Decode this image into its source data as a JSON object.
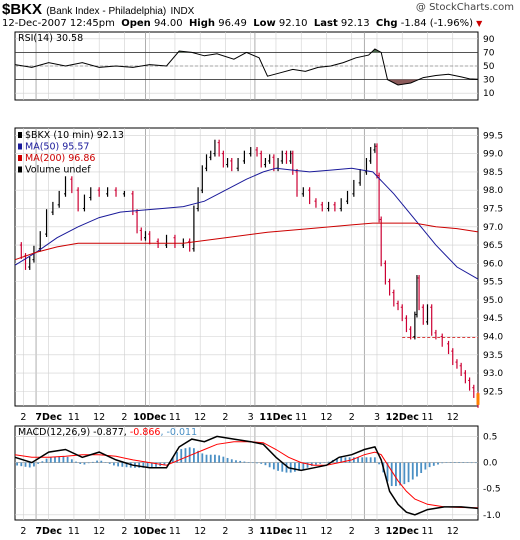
{
  "header": {
    "symbol": "$BKX",
    "name": "(Bank Index - Philadelphia)",
    "exchange": "INDX",
    "copyright": "@ StockCharts.com",
    "date": "12-Dec-2007 12:45pm",
    "open_label": "Open",
    "open": "94.00",
    "high_label": "High",
    "high": "96.49",
    "low_label": "Low",
    "low": "92.10",
    "last_label": "Last",
    "last": "92.13",
    "chg_label": "Chg",
    "chg": "-1.84 (-1.96%)",
    "chg_marker": "▼"
  },
  "colors": {
    "rsi_line": "#000000",
    "rsi_fill_overbought": "#4d6b4d",
    "rsi_fill_oversold": "#8b5a5a",
    "ma50": "#1a1a9a",
    "ma200": "#cc0000",
    "price_up": "#000000",
    "price_down": "#cc0033",
    "macd_line": "#000000",
    "macd_signal": "#ff0000",
    "macd_hist": "#4a8fc4",
    "grid": "#d0d0d0"
  },
  "chart_data": {
    "type": "line",
    "x_tick_labels": [
      "2",
      "7Dec",
      "11",
      "12",
      "2",
      "10Dec",
      "11",
      "12",
      "2",
      "3",
      "11Dec",
      "11",
      "12",
      "2",
      "3",
      "12Dec",
      "11",
      "12"
    ],
    "x_tick_index": [
      4,
      16,
      28,
      40,
      52,
      64,
      76,
      88,
      100,
      112,
      124,
      136,
      148,
      160,
      172,
      184,
      196,
      208
    ],
    "day_boundary_index": [
      10,
      62,
      114,
      166
    ],
    "rsi": {
      "legend": "RSI(14) 30.58",
      "label": "RSI(14)",
      "last": "30.58",
      "ylim": [
        0,
        100
      ],
      "y_ticks": [
        10,
        30,
        50,
        70,
        90
      ],
      "ref_lines": [
        30,
        50,
        70
      ],
      "points": [
        [
          0,
          52
        ],
        [
          8,
          48
        ],
        [
          16,
          55
        ],
        [
          24,
          50
        ],
        [
          32,
          55
        ],
        [
          40,
          48
        ],
        [
          48,
          50
        ],
        [
          56,
          48
        ],
        [
          64,
          52
        ],
        [
          72,
          50
        ],
        [
          78,
          72
        ],
        [
          84,
          70
        ],
        [
          90,
          65
        ],
        [
          96,
          68
        ],
        [
          104,
          60
        ],
        [
          110,
          70
        ],
        [
          116,
          62
        ],
        [
          120,
          35
        ],
        [
          126,
          40
        ],
        [
          132,
          45
        ],
        [
          138,
          42
        ],
        [
          144,
          48
        ],
        [
          150,
          50
        ],
        [
          156,
          55
        ],
        [
          162,
          62
        ],
        [
          168,
          66
        ],
        [
          171,
          75
        ],
        [
          174,
          70
        ],
        [
          177,
          30
        ],
        [
          182,
          22
        ],
        [
          188,
          25
        ],
        [
          194,
          33
        ],
        [
          200,
          36
        ],
        [
          206,
          38
        ],
        [
          212,
          34
        ],
        [
          216,
          31
        ],
        [
          220,
          30.58
        ]
      ]
    },
    "price": {
      "legend_symbol": "$BKX (10 min) 92.13",
      "legend_ma50": "MA(50) 95.57",
      "legend_ma200": "MA(200) 96.86",
      "legend_volume": "Volume undef",
      "ylim": [
        92.1,
        99.7
      ],
      "y_ticks": [
        92.5,
        93.0,
        93.5,
        94.0,
        94.5,
        95.0,
        95.5,
        96.0,
        96.5,
        97.0,
        97.5,
        98.0,
        98.5,
        99.0,
        99.5
      ],
      "prev_close_level": 93.97,
      "close_points": [
        [
          0,
          96.5
        ],
        [
          3,
          96.2
        ],
        [
          5,
          95.9
        ],
        [
          7,
          96.1
        ],
        [
          9,
          96.4
        ],
        [
          12,
          96.8
        ],
        [
          15,
          97.4
        ],
        [
          18,
          97.6
        ],
        [
          21,
          97.9
        ],
        [
          24,
          98.3
        ],
        [
          27,
          98.0
        ],
        [
          30,
          97.5
        ],
        [
          33,
          97.8
        ],
        [
          36,
          98.0
        ],
        [
          40,
          97.9
        ],
        [
          44,
          98.0
        ],
        [
          48,
          97.9
        ],
        [
          52,
          97.9
        ],
        [
          56,
          97.4
        ],
        [
          58,
          96.9
        ],
        [
          60,
          96.7
        ],
        [
          62,
          96.8
        ],
        [
          64,
          96.6
        ],
        [
          68,
          96.5
        ],
        [
          72,
          96.7
        ],
        [
          76,
          96.5
        ],
        [
          80,
          96.6
        ],
        [
          83,
          96.4
        ],
        [
          85,
          97.5
        ],
        [
          87,
          98.0
        ],
        [
          89,
          98.6
        ],
        [
          91,
          98.9
        ],
        [
          93,
          99.0
        ],
        [
          95,
          99.3
        ],
        [
          97,
          99.0
        ],
        [
          99,
          98.7
        ],
        [
          101,
          98.8
        ],
        [
          103,
          98.6
        ],
        [
          106,
          98.8
        ],
        [
          109,
          99.0
        ],
        [
          112,
          99.1
        ],
        [
          115,
          99.0
        ],
        [
          117,
          98.7
        ],
        [
          119,
          98.8
        ],
        [
          121,
          98.9
        ],
        [
          123,
          98.6
        ],
        [
          125,
          98.8
        ],
        [
          127,
          99.0
        ],
        [
          129,
          98.8
        ],
        [
          131,
          99.0
        ],
        [
          132,
          98.5
        ],
        [
          134,
          97.9
        ],
        [
          137,
          98.0
        ],
        [
          140,
          97.7
        ],
        [
          143,
          97.6
        ],
        [
          146,
          97.5
        ],
        [
          149,
          97.6
        ],
        [
          152,
          97.5
        ],
        [
          155,
          97.7
        ],
        [
          158,
          97.9
        ],
        [
          161,
          98.2
        ],
        [
          164,
          98.5
        ],
        [
          167,
          98.8
        ],
        [
          169,
          99.1
        ],
        [
          171,
          99.2
        ],
        [
          172,
          98.4
        ],
        [
          173,
          97.2
        ],
        [
          174,
          96.0
        ],
        [
          176,
          95.5
        ],
        [
          178,
          95.2
        ],
        [
          180,
          94.9
        ],
        [
          182,
          94.8
        ],
        [
          184,
          94.5
        ],
        [
          186,
          94.2
        ],
        [
          188,
          94.0
        ],
        [
          190,
          94.6
        ],
        [
          191,
          95.6
        ],
        [
          192,
          94.8
        ],
        [
          194,
          94.4
        ],
        [
          196,
          94.8
        ],
        [
          198,
          94.1
        ],
        [
          200,
          94.0
        ],
        [
          203,
          93.8
        ],
        [
          206,
          93.6
        ],
        [
          208,
          93.3
        ],
        [
          210,
          93.2
        ],
        [
          212,
          93.0
        ],
        [
          214,
          92.8
        ],
        [
          216,
          92.6
        ],
        [
          218,
          92.4
        ],
        [
          220,
          92.13
        ]
      ],
      "ma50_points": [
        [
          0,
          95.95
        ],
        [
          10,
          96.3
        ],
        [
          20,
          96.7
        ],
        [
          30,
          97.0
        ],
        [
          40,
          97.25
        ],
        [
          50,
          97.4
        ],
        [
          60,
          97.45
        ],
        [
          70,
          97.5
        ],
        [
          80,
          97.55
        ],
        [
          90,
          97.7
        ],
        [
          100,
          98.0
        ],
        [
          110,
          98.3
        ],
        [
          118,
          98.5
        ],
        [
          124,
          98.6
        ],
        [
          132,
          98.55
        ],
        [
          140,
          98.5
        ],
        [
          150,
          98.55
        ],
        [
          160,
          98.6
        ],
        [
          170,
          98.5
        ],
        [
          180,
          97.9
        ],
        [
          190,
          97.2
        ],
        [
          200,
          96.5
        ],
        [
          210,
          95.9
        ],
        [
          220,
          95.57
        ]
      ],
      "ma200_points": [
        [
          0,
          96.1
        ],
        [
          10,
          96.3
        ],
        [
          20,
          96.45
        ],
        [
          30,
          96.55
        ],
        [
          40,
          96.55
        ],
        [
          60,
          96.55
        ],
        [
          80,
          96.55
        ],
        [
          100,
          96.7
        ],
        [
          120,
          96.85
        ],
        [
          140,
          96.95
        ],
        [
          160,
          97.05
        ],
        [
          170,
          97.1
        ],
        [
          180,
          97.1
        ],
        [
          190,
          97.1
        ],
        [
          200,
          97.0
        ],
        [
          210,
          96.95
        ],
        [
          220,
          96.86
        ]
      ]
    },
    "macd": {
      "legend": "MACD(12,26,9) -0.877, -0.866, -0.011",
      "label": "MACD(12,26,9)",
      "macd": "-0.877",
      "signal": "-0.866",
      "hist": "-0.011",
      "ylim": [
        -1.1,
        0.7
      ],
      "y_ticks": [
        0.5,
        0.0,
        -0.5,
        -1.0
      ],
      "macd_points": [
        [
          0,
          0.1
        ],
        [
          8,
          0.0
        ],
        [
          16,
          0.2
        ],
        [
          24,
          0.25
        ],
        [
          32,
          0.1
        ],
        [
          40,
          0.2
        ],
        [
          48,
          0.05
        ],
        [
          56,
          -0.05
        ],
        [
          64,
          -0.1
        ],
        [
          72,
          -0.1
        ],
        [
          78,
          0.3
        ],
        [
          84,
          0.45
        ],
        [
          90,
          0.4
        ],
        [
          96,
          0.5
        ],
        [
          104,
          0.45
        ],
        [
          112,
          0.4
        ],
        [
          118,
          0.35
        ],
        [
          124,
          0.1
        ],
        [
          130,
          -0.1
        ],
        [
          136,
          -0.15
        ],
        [
          142,
          -0.1
        ],
        [
          148,
          -0.05
        ],
        [
          154,
          0.1
        ],
        [
          160,
          0.15
        ],
        [
          166,
          0.25
        ],
        [
          171,
          0.3
        ],
        [
          174,
          0.05
        ],
        [
          178,
          -0.55
        ],
        [
          182,
          -0.8
        ],
        [
          186,
          -0.95
        ],
        [
          190,
          -1.0
        ],
        [
          196,
          -0.9
        ],
        [
          204,
          -0.85
        ],
        [
          212,
          -0.85
        ],
        [
          220,
          -0.877
        ]
      ],
      "signal_points": [
        [
          0,
          0.15
        ],
        [
          8,
          0.1
        ],
        [
          16,
          0.1
        ],
        [
          24,
          0.12
        ],
        [
          32,
          0.15
        ],
        [
          40,
          0.15
        ],
        [
          48,
          0.12
        ],
        [
          56,
          0.05
        ],
        [
          64,
          0.0
        ],
        [
          72,
          -0.05
        ],
        [
          78,
          0.05
        ],
        [
          84,
          0.15
        ],
        [
          90,
          0.25
        ],
        [
          96,
          0.35
        ],
        [
          104,
          0.4
        ],
        [
          112,
          0.4
        ],
        [
          118,
          0.38
        ],
        [
          124,
          0.25
        ],
        [
          130,
          0.1
        ],
        [
          136,
          0.0
        ],
        [
          142,
          -0.05
        ],
        [
          148,
          -0.05
        ],
        [
          154,
          0.0
        ],
        [
          160,
          0.05
        ],
        [
          166,
          0.15
        ],
        [
          171,
          0.2
        ],
        [
          174,
          0.15
        ],
        [
          178,
          -0.1
        ],
        [
          182,
          -0.35
        ],
        [
          186,
          -0.55
        ],
        [
          190,
          -0.7
        ],
        [
          196,
          -0.8
        ],
        [
          204,
          -0.85
        ],
        [
          212,
          -0.86
        ],
        [
          220,
          -0.866
        ]
      ]
    }
  }
}
